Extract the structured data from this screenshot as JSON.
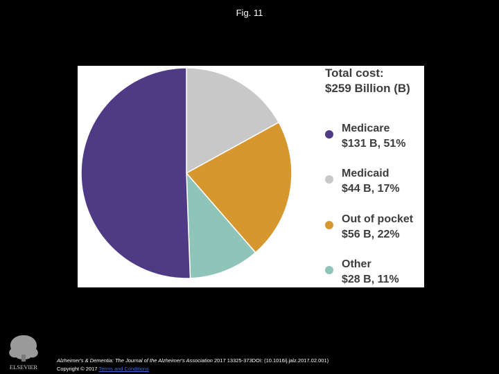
{
  "figure": {
    "title": "Fig. 11"
  },
  "chart_data": {
    "type": "pie",
    "title": "Total cost:",
    "subtitle": "$259 Billion (B)",
    "slices": [
      {
        "name": "Medicare",
        "amount": "$131 B, 51%",
        "value": 131,
        "percent": 51,
        "color": "#4f3a85"
      },
      {
        "name": "Medicaid",
        "amount": "$44 B, 17%",
        "value": 44,
        "percent": 17,
        "color": "#c8c8c8"
      },
      {
        "name": "Out of pocket",
        "amount": "$56 B, 22%",
        "value": 56,
        "percent": 22,
        "color": "#d6982e"
      },
      {
        "name": "Other",
        "amount": "$28 B, 11%",
        "value": 28,
        "percent": 11,
        "color": "#8fc4b8"
      }
    ],
    "legend_position": "right"
  },
  "footer": {
    "logo_text": "ELSEVIER",
    "journal": "Alzheimer's & Dementia: The Journal of the Alzheimer's Association",
    "citation_rest": " 2017 13325-373DOI: (10.1016/j.jalz.2017.02.001)",
    "copyright": "Copyright © 2017 ",
    "terms_link": "Terms and Conditions"
  }
}
